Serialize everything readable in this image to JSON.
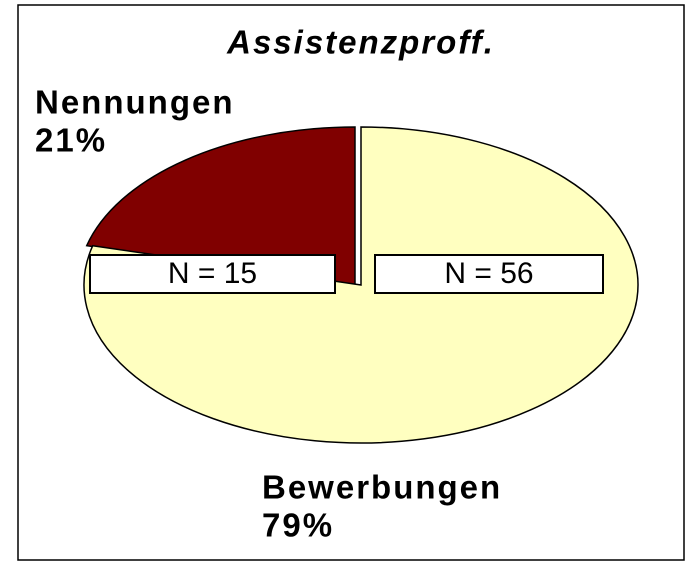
{
  "chart_data": {
    "type": "pie",
    "title": "Assistenzproff.",
    "categories": [
      "Nennungen",
      "Bewerbungen"
    ],
    "values": [
      21,
      79
    ],
    "value_labels": [
      "21%",
      "79%"
    ],
    "colors": [
      "#800000",
      "#ffffc0"
    ],
    "annotations": [
      "N = 15",
      "N = 56"
    ]
  }
}
